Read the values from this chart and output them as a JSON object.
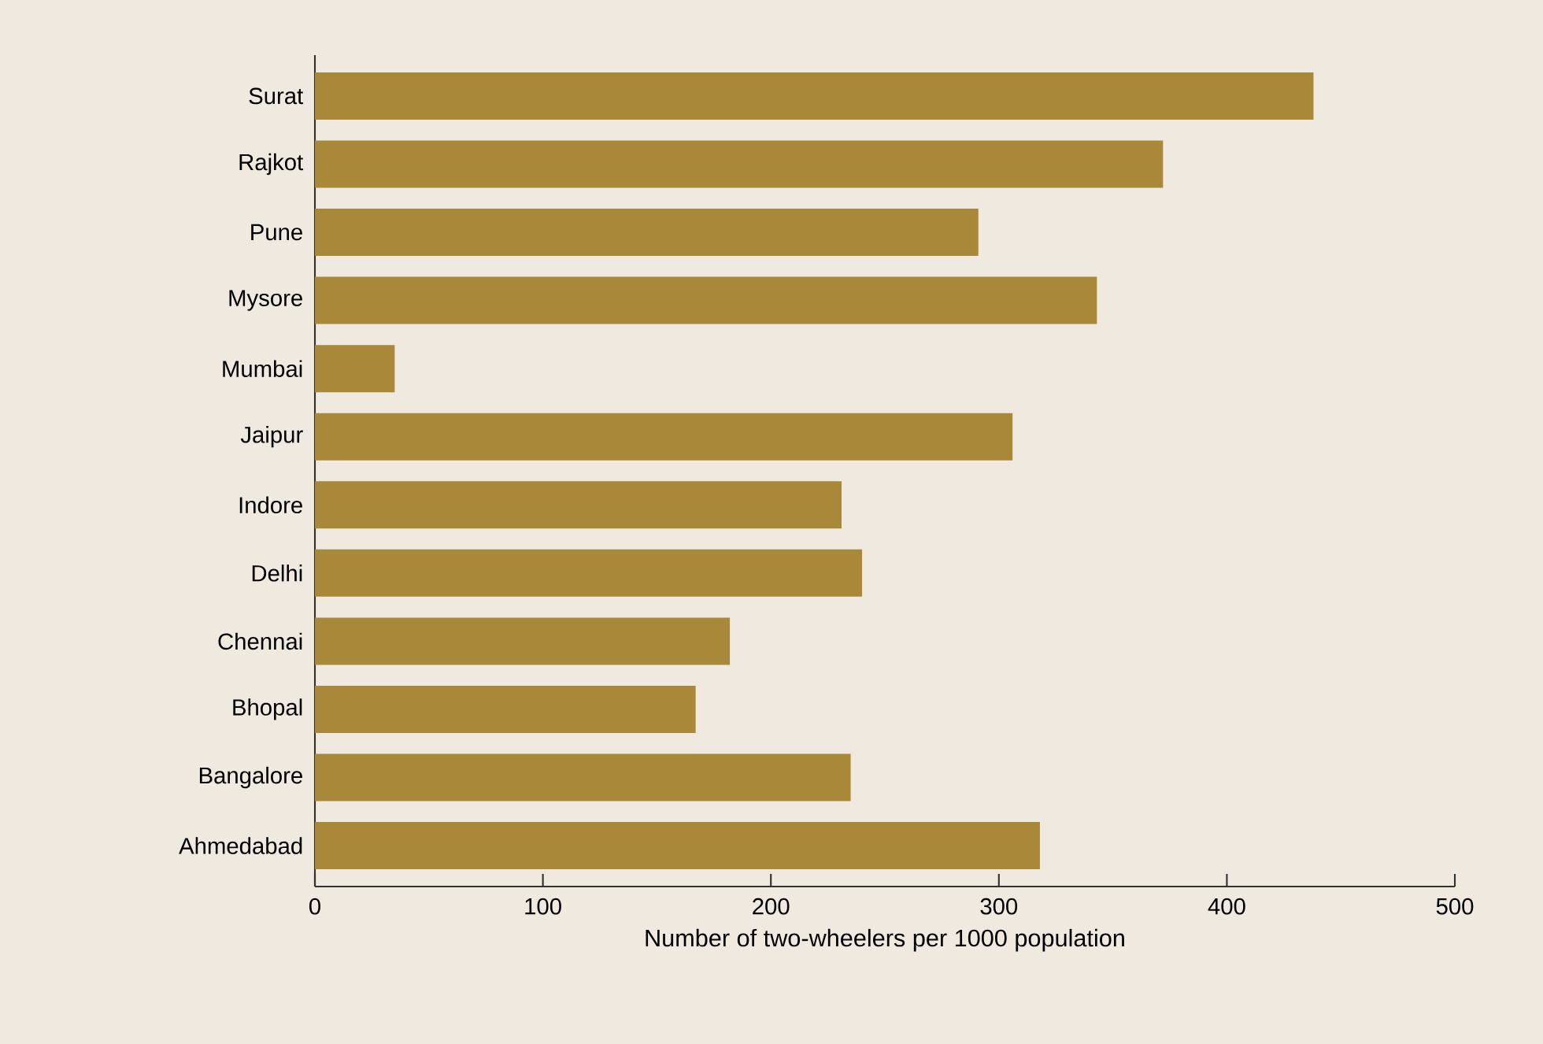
{
  "chart_data": {
    "type": "bar",
    "orientation": "horizontal",
    "xlabel": "Number of two-wheelers per 1000 population",
    "categories": [
      "Surat",
      "Rajkot",
      "Pune",
      "Mysore",
      "Mumbai",
      "Jaipur",
      "Indore",
      "Delhi",
      "Chennai",
      "Bhopal",
      "Bangalore",
      "Ahmedabad"
    ],
    "values": [
      438,
      372,
      291,
      343,
      35,
      306,
      231,
      240,
      182,
      167,
      235,
      318
    ],
    "color": "#a8893a",
    "xlim": [
      0,
      500
    ],
    "xticks": [
      0,
      100,
      200,
      300,
      400,
      500
    ],
    "grid": false
  }
}
